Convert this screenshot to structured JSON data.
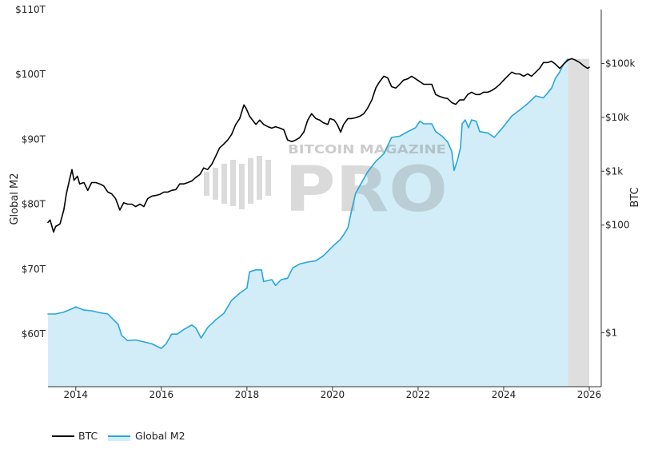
{
  "chart_data": {
    "type": "line",
    "grid": false,
    "legend_position": "bottom-left",
    "x_axis": {
      "range": [
        2013.35,
        2026.28
      ],
      "ticks": [
        2014,
        2016,
        2018,
        2020,
        2022,
        2024,
        2026
      ]
    },
    "y_left": {
      "label": "Global M2",
      "range": [
        51.9,
        110
      ],
      "ticks": [
        60,
        70,
        80,
        90,
        100,
        110
      ],
      "tick_labels": [
        "$60T",
        "$70T",
        "$80T",
        "$90T",
        "$100T",
        "$110T"
      ]
    },
    "y_right": {
      "label": "BTC",
      "scale": "log",
      "range": [
        0.1,
        1000000
      ],
      "ticks": [
        1,
        100,
        1000,
        10000,
        100000
      ],
      "tick_labels": [
        "$1",
        "$100",
        "$1k",
        "$10k",
        "$100k"
      ]
    },
    "series": [
      {
        "name": "BTC",
        "axis": "right",
        "style": "line",
        "color": "#000000",
        "points": [
          [
            2013.35,
            112
          ],
          [
            2013.4,
            124
          ],
          [
            2013.48,
            74
          ],
          [
            2013.53,
            94
          ],
          [
            2013.63,
            105
          ],
          [
            2013.72,
            190
          ],
          [
            2013.78,
            380
          ],
          [
            2013.85,
            680
          ],
          [
            2013.91,
            1070
          ],
          [
            2013.96,
            680
          ],
          [
            2014.04,
            810
          ],
          [
            2014.09,
            580
          ],
          [
            2014.19,
            615
          ],
          [
            2014.28,
            440
          ],
          [
            2014.37,
            615
          ],
          [
            2014.47,
            615
          ],
          [
            2014.56,
            580
          ],
          [
            2014.65,
            535
          ],
          [
            2014.75,
            410
          ],
          [
            2014.84,
            380
          ],
          [
            2014.93,
            310
          ],
          [
            2015.03,
            190
          ],
          [
            2015.12,
            260
          ],
          [
            2015.21,
            245
          ],
          [
            2015.31,
            245
          ],
          [
            2015.4,
            220
          ],
          [
            2015.5,
            245
          ],
          [
            2015.59,
            220
          ],
          [
            2015.68,
            310
          ],
          [
            2015.78,
            345
          ],
          [
            2015.87,
            355
          ],
          [
            2015.96,
            370
          ],
          [
            2016.06,
            410
          ],
          [
            2016.15,
            410
          ],
          [
            2016.24,
            440
          ],
          [
            2016.34,
            455
          ],
          [
            2016.43,
            580
          ],
          [
            2016.52,
            580
          ],
          [
            2016.62,
            615
          ],
          [
            2016.71,
            660
          ],
          [
            2016.8,
            760
          ],
          [
            2016.9,
            870
          ],
          [
            2016.99,
            1150
          ],
          [
            2017.08,
            1070
          ],
          [
            2017.18,
            1350
          ],
          [
            2017.27,
            1900
          ],
          [
            2017.36,
            2700
          ],
          [
            2017.46,
            3200
          ],
          [
            2017.55,
            3800
          ],
          [
            2017.64,
            4800
          ],
          [
            2017.74,
            7400
          ],
          [
            2017.83,
            9500
          ],
          [
            2017.93,
            17000
          ],
          [
            2017.98,
            14800
          ],
          [
            2018.06,
            10500
          ],
          [
            2018.13,
            8900
          ],
          [
            2018.21,
            7400
          ],
          [
            2018.3,
            8900
          ],
          [
            2018.39,
            7400
          ],
          [
            2018.49,
            6700
          ],
          [
            2018.58,
            6300
          ],
          [
            2018.67,
            6700
          ],
          [
            2018.77,
            6300
          ],
          [
            2018.86,
            5900
          ],
          [
            2018.95,
            3800
          ],
          [
            2019.05,
            3550
          ],
          [
            2019.14,
            3800
          ],
          [
            2019.23,
            4200
          ],
          [
            2019.33,
            5300
          ],
          [
            2019.42,
            8900
          ],
          [
            2019.51,
            11700
          ],
          [
            2019.61,
            9500
          ],
          [
            2019.7,
            8900
          ],
          [
            2019.79,
            7900
          ],
          [
            2019.89,
            7400
          ],
          [
            2019.94,
            9500
          ],
          [
            2020.04,
            8900
          ],
          [
            2020.11,
            7400
          ],
          [
            2020.19,
            5300
          ],
          [
            2020.26,
            7400
          ],
          [
            2020.36,
            9500
          ],
          [
            2020.45,
            9500
          ],
          [
            2020.54,
            9800
          ],
          [
            2020.64,
            10500
          ],
          [
            2020.73,
            11700
          ],
          [
            2020.82,
            14800
          ],
          [
            2020.92,
            21000
          ],
          [
            2021.01,
            35000
          ],
          [
            2021.1,
            46000
          ],
          [
            2021.2,
            58000
          ],
          [
            2021.29,
            54000
          ],
          [
            2021.38,
            37000
          ],
          [
            2021.48,
            35000
          ],
          [
            2021.57,
            41000
          ],
          [
            2021.66,
            49000
          ],
          [
            2021.76,
            52000
          ],
          [
            2021.85,
            58000
          ],
          [
            2021.94,
            52000
          ],
          [
            2022.04,
            46000
          ],
          [
            2022.13,
            41000
          ],
          [
            2022.22,
            41000
          ],
          [
            2022.32,
            41000
          ],
          [
            2022.41,
            26500
          ],
          [
            2022.5,
            24500
          ],
          [
            2022.6,
            23000
          ],
          [
            2022.69,
            22300
          ],
          [
            2022.79,
            18700
          ],
          [
            2022.88,
            17400
          ],
          [
            2022.97,
            21000
          ],
          [
            2023.07,
            21000
          ],
          [
            2023.16,
            26500
          ],
          [
            2023.25,
            29300
          ],
          [
            2023.35,
            26500
          ],
          [
            2023.44,
            26500
          ],
          [
            2023.53,
            29300
          ],
          [
            2023.63,
            29300
          ],
          [
            2023.72,
            31500
          ],
          [
            2023.81,
            35000
          ],
          [
            2023.91,
            41000
          ],
          [
            2024.0,
            49000
          ],
          [
            2024.09,
            58000
          ],
          [
            2024.19,
            69000
          ],
          [
            2024.28,
            64000
          ],
          [
            2024.37,
            64000
          ],
          [
            2024.47,
            58000
          ],
          [
            2024.56,
            64000
          ],
          [
            2024.65,
            58000
          ],
          [
            2024.75,
            69000
          ],
          [
            2024.84,
            81000
          ],
          [
            2024.93,
            104000
          ],
          [
            2025.03,
            104000
          ],
          [
            2025.12,
            110000
          ],
          [
            2025.21,
            97000
          ],
          [
            2025.31,
            81000
          ],
          [
            2025.4,
            97000
          ],
          [
            2025.5,
            115000
          ],
          [
            2025.59,
            123000
          ],
          [
            2025.68,
            115000
          ],
          [
            2025.78,
            104000
          ],
          [
            2025.87,
            90000
          ],
          [
            2025.96,
            81000
          ],
          [
            2026.0,
            85000
          ]
        ]
      },
      {
        "name": "Global M2",
        "axis": "left",
        "style": "area",
        "color": "#27a6dc",
        "fill": "#d2edf8",
        "points": [
          [
            2013.35,
            63.1
          ],
          [
            2013.53,
            63.1
          ],
          [
            2013.72,
            63.4
          ],
          [
            2013.91,
            63.9
          ],
          [
            2014.0,
            64.2
          ],
          [
            2014.19,
            63.7
          ],
          [
            2014.37,
            63.6
          ],
          [
            2014.56,
            63.3
          ],
          [
            2014.75,
            63.1
          ],
          [
            2014.84,
            62.5
          ],
          [
            2014.99,
            61.5
          ],
          [
            2015.07,
            59.8
          ],
          [
            2015.21,
            59.0
          ],
          [
            2015.4,
            59.1
          ],
          [
            2015.59,
            58.8
          ],
          [
            2015.78,
            58.5
          ],
          [
            2015.93,
            58.0
          ],
          [
            2016.0,
            57.8
          ],
          [
            2016.11,
            58.5
          ],
          [
            2016.24,
            60.0
          ],
          [
            2016.37,
            60.0
          ],
          [
            2016.52,
            60.7
          ],
          [
            2016.71,
            61.4
          ],
          [
            2016.8,
            61.0
          ],
          [
            2016.93,
            59.4
          ],
          [
            2017.08,
            61.0
          ],
          [
            2017.27,
            62.2
          ],
          [
            2017.46,
            63.2
          ],
          [
            2017.64,
            65.2
          ],
          [
            2017.83,
            66.3
          ],
          [
            2018.0,
            67.1
          ],
          [
            2018.06,
            69.6
          ],
          [
            2018.21,
            69.9
          ],
          [
            2018.34,
            69.9
          ],
          [
            2018.39,
            68.1
          ],
          [
            2018.58,
            68.4
          ],
          [
            2018.67,
            67.5
          ],
          [
            2018.8,
            68.4
          ],
          [
            2018.95,
            68.6
          ],
          [
            2019.07,
            70.2
          ],
          [
            2019.23,
            70.8
          ],
          [
            2019.42,
            71.1
          ],
          [
            2019.61,
            71.3
          ],
          [
            2019.79,
            72.1
          ],
          [
            2020.0,
            73.5
          ],
          [
            2020.17,
            74.5
          ],
          [
            2020.26,
            75.3
          ],
          [
            2020.36,
            76.4
          ],
          [
            2020.45,
            79.2
          ],
          [
            2020.54,
            81.7
          ],
          [
            2020.64,
            82.9
          ],
          [
            2020.82,
            85.0
          ],
          [
            2021.01,
            86.6
          ],
          [
            2021.2,
            87.8
          ],
          [
            2021.38,
            90.3
          ],
          [
            2021.57,
            90.5
          ],
          [
            2021.76,
            91.2
          ],
          [
            2021.94,
            91.8
          ],
          [
            2022.04,
            92.8
          ],
          [
            2022.13,
            92.4
          ],
          [
            2022.32,
            92.4
          ],
          [
            2022.41,
            91.2
          ],
          [
            2022.56,
            90.5
          ],
          [
            2022.69,
            89.6
          ],
          [
            2022.79,
            88.1
          ],
          [
            2022.84,
            85.2
          ],
          [
            2022.92,
            86.8
          ],
          [
            2022.99,
            88.7
          ],
          [
            2023.03,
            92.4
          ],
          [
            2023.1,
            93.0
          ],
          [
            2023.18,
            91.8
          ],
          [
            2023.25,
            93.0
          ],
          [
            2023.36,
            92.8
          ],
          [
            2023.44,
            91.2
          ],
          [
            2023.63,
            91.0
          ],
          [
            2023.78,
            90.3
          ],
          [
            2023.91,
            91.3
          ],
          [
            2024.0,
            92.0
          ],
          [
            2024.19,
            93.6
          ],
          [
            2024.37,
            94.5
          ],
          [
            2024.56,
            95.5
          ],
          [
            2024.75,
            96.7
          ],
          [
            2024.93,
            96.4
          ],
          [
            2025.12,
            97.9
          ],
          [
            2025.21,
            99.4
          ],
          [
            2025.31,
            100.4
          ],
          [
            2025.4,
            101.6
          ],
          [
            2025.5,
            102.4
          ]
        ]
      }
    ],
    "shaded_region": {
      "x": [
        2025.5,
        2026.0
      ],
      "color": "#dedede"
    }
  },
  "watermark": {
    "brand": "BITCOIN MAGAZINE",
    "product": "PRO"
  }
}
